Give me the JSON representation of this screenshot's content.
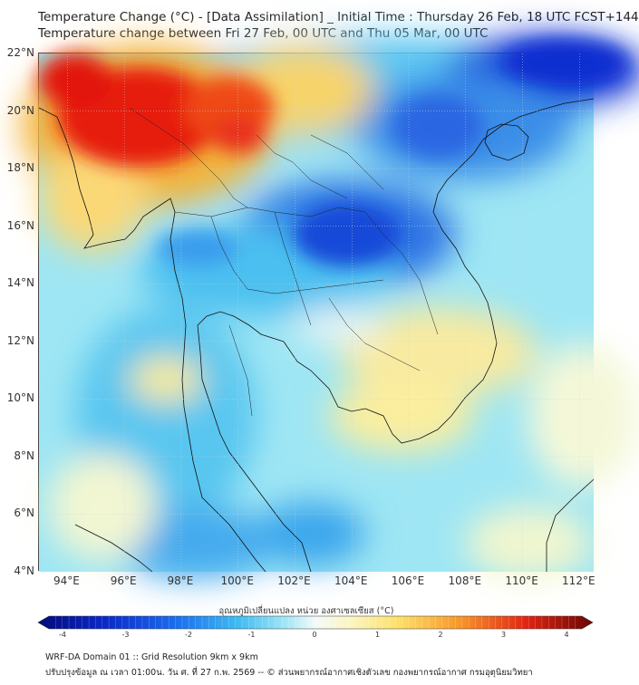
{
  "title_line1": "Temperature Change (°C) - [Data Assimilation] _ Initial Time : Thursday 26 Feb, 18 UTC FCST+144",
  "title_line2": "Temperature change between Fri 27 Feb, 00 UTC and Thu 05 Mar, 00 UTC",
  "map": {
    "lat_labels": [
      "22°N",
      "20°N",
      "18°N",
      "16°N",
      "14°N",
      "12°N",
      "10°N",
      "8°N",
      "6°N",
      "4°N"
    ],
    "lon_labels": [
      "94°E",
      "96°E",
      "98°E",
      "100°E",
      "102°E",
      "104°E",
      "106°E",
      "108°E",
      "110°E",
      "112°E"
    ],
    "lat_range": [
      4,
      22
    ],
    "lon_range": [
      93,
      112.5
    ],
    "field": "temperature change (°C)",
    "colors": {
      "strong_warm": "#e0160a",
      "warm": "#f79a2a",
      "mild_warm": "#fde87a",
      "neutral": "#eef8fb",
      "mild_cool": "#9ee6f4",
      "cool": "#3ab6ef",
      "strong_cool": "#1c4fe0",
      "coast": "#111111"
    }
  },
  "colorbar": {
    "title": "อุณหภูมิเปลี่ยนแปลง หน่วย องศาเซลเซียส (°C)",
    "ticks": [
      "-4",
      "-3",
      "-2",
      "-1",
      "0",
      "1",
      "2",
      "3",
      "4"
    ]
  },
  "footer": {
    "line1": "WRF-DA Domain 01 :: Grid Resolution 9km x 9km",
    "line2": "ปรับปรุงข้อมูล ณ เวลา 01:00น. วัน ศ. ที่ 27 ก.พ. 2569 -- © ส่วนพยากรณ์อากาศเชิงตัวเลข กองพยากรณ์อากาศ กรมอุตุนิยมวิทยา"
  }
}
